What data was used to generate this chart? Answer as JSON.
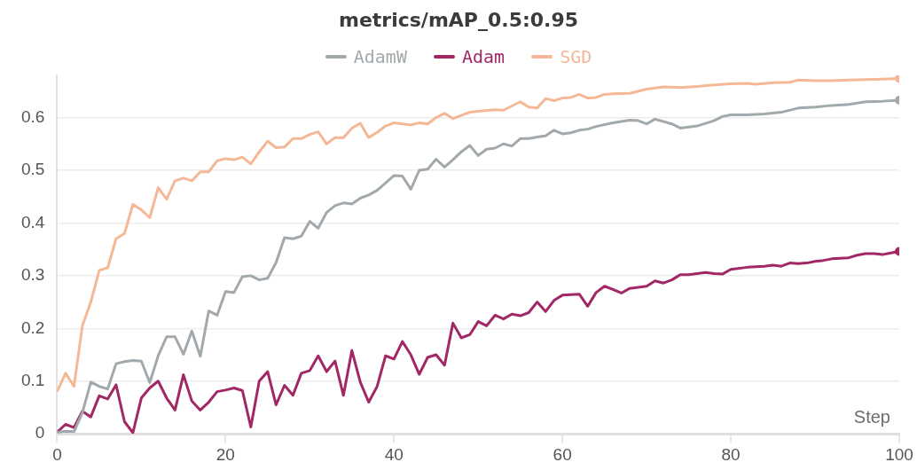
{
  "chart_data": {
    "type": "line",
    "title": "metrics/mAP_0.5:0.95",
    "xlabel": "Step",
    "xlim": [
      0,
      100
    ],
    "xticks": [
      0,
      20,
      40,
      60,
      80,
      100
    ],
    "ylim": [
      0,
      0.68
    ],
    "yticks": [
      0,
      0.1,
      0.2,
      0.3,
      0.4,
      0.5,
      0.6
    ],
    "grid": "y",
    "legend": "top",
    "series": [
      {
        "name": "AdamW",
        "color": "#a2a9ad",
        "x": [
          0,
          1,
          2,
          3,
          4,
          5,
          6,
          7,
          8,
          9,
          10,
          11,
          12,
          13,
          14,
          15,
          16,
          17,
          18,
          19,
          20,
          21,
          22,
          23,
          24,
          25,
          26,
          27,
          28,
          29,
          30,
          31,
          32,
          33,
          34,
          35,
          36,
          37,
          38,
          39,
          40,
          41,
          42,
          43,
          44,
          45,
          46,
          47,
          48,
          49,
          50,
          51,
          52,
          53,
          54,
          55,
          56,
          57,
          58,
          59,
          60,
          61,
          62,
          63,
          64,
          66,
          68,
          69,
          70,
          71,
          73,
          74,
          76,
          78,
          79,
          80,
          82,
          84,
          86,
          88,
          90,
          92,
          94,
          96,
          98,
          100
        ],
        "values": [
          0.003,
          0.005,
          0.004,
          0.04,
          0.098,
          0.09,
          0.085,
          0.133,
          0.137,
          0.139,
          0.138,
          0.097,
          0.148,
          0.184,
          0.184,
          0.151,
          0.195,
          0.147,
          0.233,
          0.225,
          0.27,
          0.268,
          0.298,
          0.3,
          0.292,
          0.295,
          0.325,
          0.372,
          0.37,
          0.375,
          0.403,
          0.39,
          0.42,
          0.433,
          0.438,
          0.436,
          0.447,
          0.453,
          0.462,
          0.476,
          0.49,
          0.489,
          0.464,
          0.5,
          0.502,
          0.521,
          0.506,
          0.52,
          0.535,
          0.547,
          0.528,
          0.54,
          0.542,
          0.55,
          0.546,
          0.56,
          0.56,
          0.563,
          0.565,
          0.576,
          0.569,
          0.571,
          0.576,
          0.578,
          0.583,
          0.59,
          0.595,
          0.594,
          0.588,
          0.597,
          0.588,
          0.58,
          0.584,
          0.594,
          0.602,
          0.605,
          0.605,
          0.607,
          0.61,
          0.618,
          0.62,
          0.623,
          0.625,
          0.63,
          0.631,
          0.633
        ]
      },
      {
        "name": "Adam",
        "color": "#a12864",
        "x": [
          0,
          1,
          2,
          3,
          4,
          5,
          6,
          7,
          8,
          9,
          10,
          11,
          12,
          13,
          14,
          15,
          16,
          17,
          18,
          19,
          20,
          21,
          22,
          23,
          24,
          25,
          26,
          27,
          28,
          29,
          30,
          31,
          32,
          33,
          34,
          35,
          36,
          37,
          38,
          39,
          40,
          41,
          42,
          43,
          44,
          45,
          46,
          47,
          48,
          49,
          50,
          51,
          52,
          53,
          54,
          55,
          56,
          57,
          58,
          59,
          60,
          61,
          62,
          63,
          64,
          65,
          66,
          67,
          68,
          69,
          70,
          71,
          72,
          73,
          74,
          75,
          76,
          77,
          78,
          79,
          80,
          82,
          84,
          85,
          86,
          87,
          88,
          89,
          90,
          91,
          92,
          93,
          94,
          95,
          96,
          97,
          98,
          99,
          100
        ],
        "values": [
          0.003,
          0.018,
          0.012,
          0.043,
          0.032,
          0.072,
          0.066,
          0.093,
          0.023,
          0.002,
          0.068,
          0.087,
          0.1,
          0.068,
          0.045,
          0.112,
          0.062,
          0.045,
          0.06,
          0.08,
          0.083,
          0.087,
          0.082,
          0.013,
          0.1,
          0.118,
          0.055,
          0.092,
          0.073,
          0.115,
          0.12,
          0.148,
          0.118,
          0.138,
          0.073,
          0.158,
          0.098,
          0.06,
          0.09,
          0.148,
          0.142,
          0.175,
          0.15,
          0.113,
          0.145,
          0.15,
          0.13,
          0.21,
          0.182,
          0.188,
          0.213,
          0.205,
          0.225,
          0.218,
          0.227,
          0.224,
          0.23,
          0.25,
          0.232,
          0.253,
          0.263,
          0.264,
          0.265,
          0.242,
          0.268,
          0.28,
          0.274,
          0.267,
          0.276,
          0.278,
          0.28,
          0.29,
          0.286,
          0.292,
          0.302,
          0.302,
          0.304,
          0.306,
          0.304,
          0.303,
          0.312,
          0.316,
          0.318,
          0.32,
          0.318,
          0.324,
          0.323,
          0.324,
          0.327,
          0.329,
          0.332,
          0.333,
          0.334,
          0.339,
          0.342,
          0.342,
          0.34,
          0.343,
          0.346
        ]
      },
      {
        "name": "SGD",
        "color": "#f4b896",
        "x": [
          0,
          1,
          2,
          3,
          4,
          5,
          6,
          7,
          8,
          9,
          10,
          11,
          12,
          13,
          14,
          15,
          16,
          17,
          18,
          19,
          20,
          21,
          22,
          23,
          24,
          25,
          26,
          27,
          28,
          29,
          30,
          31,
          32,
          33,
          34,
          35,
          36,
          37,
          38,
          39,
          40,
          41,
          42,
          43,
          44,
          45,
          46,
          47,
          48,
          49,
          50,
          52,
          53,
          55,
          56,
          57,
          58,
          59,
          60,
          61,
          62,
          63,
          64,
          65,
          66,
          68,
          70,
          72,
          74,
          76,
          78,
          80,
          82,
          83,
          85,
          87,
          88,
          90,
          92,
          94,
          96,
          98,
          100
        ],
        "values": [
          0.08,
          0.115,
          0.09,
          0.205,
          0.25,
          0.31,
          0.315,
          0.37,
          0.38,
          0.435,
          0.425,
          0.41,
          0.467,
          0.445,
          0.48,
          0.485,
          0.48,
          0.497,
          0.497,
          0.518,
          0.522,
          0.52,
          0.525,
          0.512,
          0.535,
          0.555,
          0.543,
          0.544,
          0.56,
          0.56,
          0.568,
          0.573,
          0.55,
          0.562,
          0.562,
          0.58,
          0.589,
          0.562,
          0.572,
          0.584,
          0.59,
          0.588,
          0.586,
          0.59,
          0.588,
          0.6,
          0.608,
          0.598,
          0.604,
          0.61,
          0.612,
          0.615,
          0.614,
          0.63,
          0.62,
          0.618,
          0.636,
          0.632,
          0.637,
          0.638,
          0.644,
          0.637,
          0.638,
          0.644,
          0.645,
          0.646,
          0.654,
          0.658,
          0.657,
          0.659,
          0.662,
          0.664,
          0.665,
          0.663,
          0.666,
          0.667,
          0.671,
          0.67,
          0.67,
          0.671,
          0.672,
          0.673,
          0.674
        ]
      }
    ]
  }
}
